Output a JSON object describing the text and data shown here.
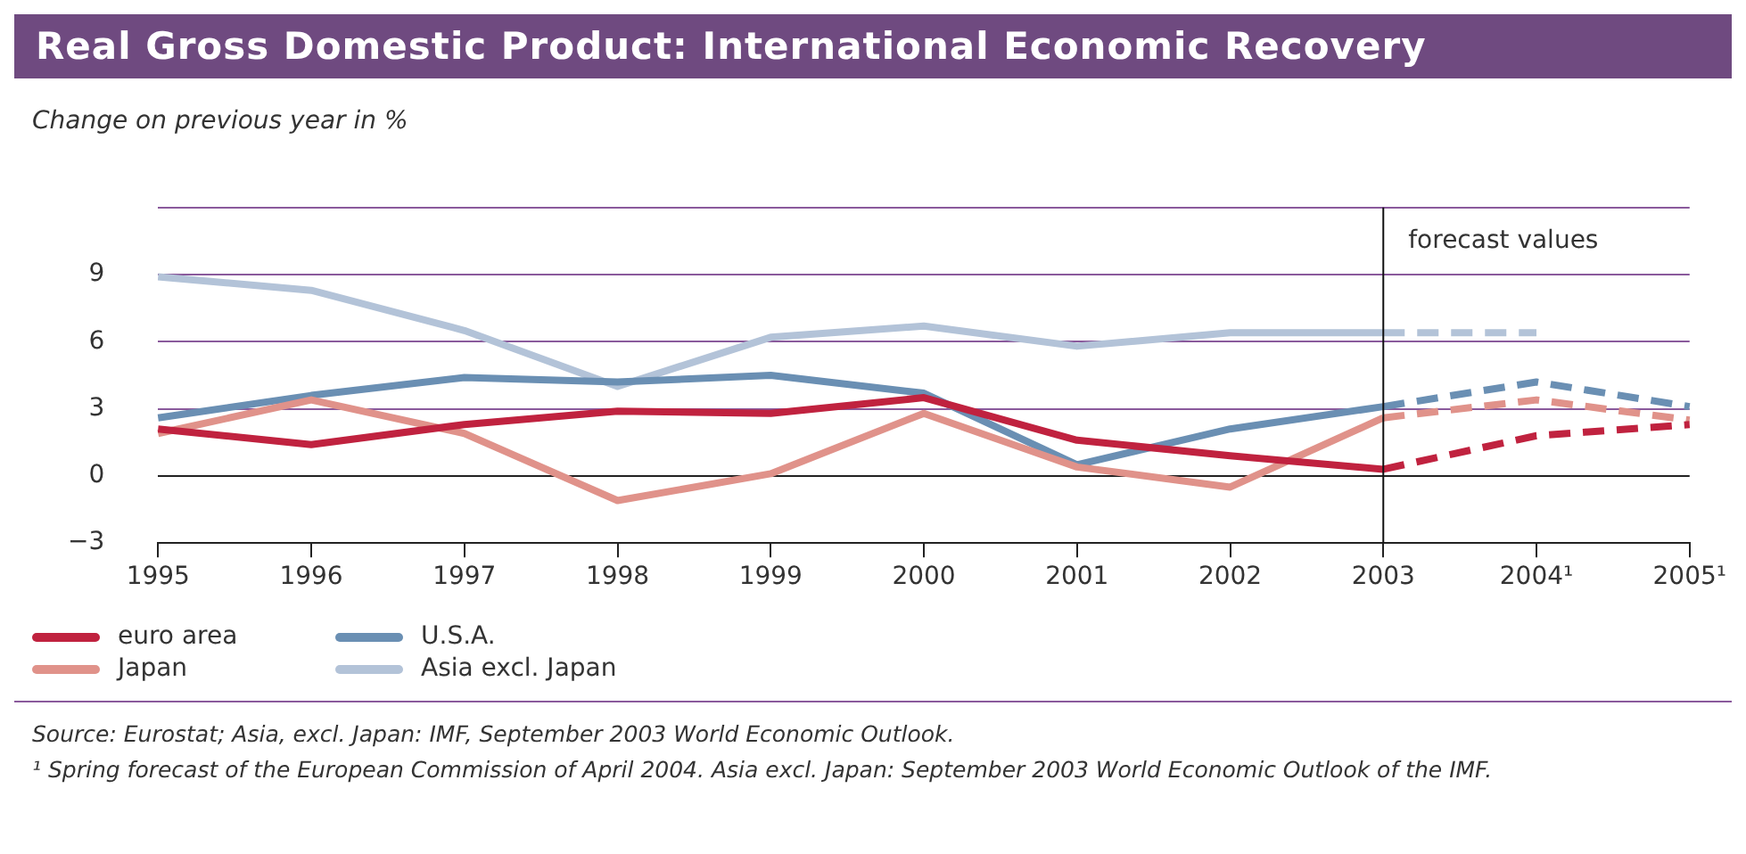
{
  "chart_data": {
    "type": "line",
    "title": "Real Gross Domestic Product: International Economic Recovery",
    "ylabel": "Change on previous year in %",
    "categories": [
      "1995",
      "1996",
      "1997",
      "1998",
      "1999",
      "2000",
      "2001",
      "2002",
      "2003",
      "2004¹",
      "2005¹"
    ],
    "series": [
      {
        "name": "euro area",
        "color": "#c0223f",
        "values": [
          2.1,
          1.4,
          2.3,
          2.9,
          2.8,
          3.5,
          1.6,
          0.9,
          0.3,
          1.8,
          2.3
        ]
      },
      {
        "name": "Japan",
        "color": "#e0928a",
        "values": [
          1.9,
          3.4,
          1.9,
          -1.1,
          0.1,
          2.8,
          0.4,
          -0.5,
          2.6,
          3.4,
          2.5
        ]
      },
      {
        "name": "U.S.A.",
        "color": "#6a8fb3",
        "values": [
          2.6,
          3.6,
          4.4,
          4.2,
          4.5,
          3.7,
          0.5,
          2.1,
          3.1,
          4.2,
          3.1
        ]
      },
      {
        "name": "Asia excl. Japan",
        "color": "#b3c3d8",
        "values": [
          8.9,
          8.3,
          6.5,
          4.0,
          6.2,
          6.7,
          5.8,
          6.4,
          6.4,
          6.4,
          null
        ]
      }
    ],
    "ylim": [
      -3,
      12
    ],
    "yticks": [
      -3,
      0,
      3,
      6,
      9,
      {
        "value": 12,
        "label": null
      }
    ],
    "grid": "y",
    "legend": "bottom",
    "ref_lines": [
      {
        "axis": "x",
        "value": "2003",
        "label": "forecast values"
      }
    ],
    "annotations": [
      "Source: Eurostat; Asia, excl. Japan: IMF, September 2003 World Economic Outlook.",
      "¹ Spring forecast of the European Commission of April 2004.  Asia excl. Japan: September 2003 World Economic Outlook of the IMF."
    ]
  }
}
